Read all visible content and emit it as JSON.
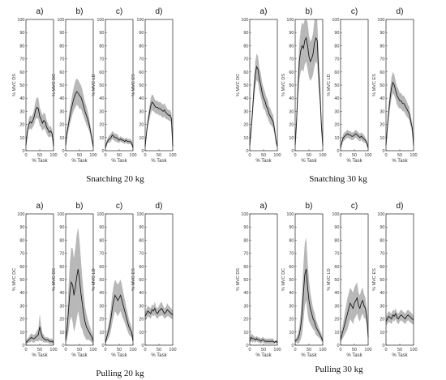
{
  "figure": {
    "groups": [
      {
        "caption": "Snatching 20 kg"
      },
      {
        "caption": "Snatching 30 kg"
      },
      {
        "caption": "Pulling 20 kg"
      },
      {
        "caption": "Pulling 30 kg"
      }
    ]
  },
  "chart_data": [
    {
      "group": "Snatching 20 kg",
      "panel_label": "a)",
      "type": "line",
      "ylabel": "% MVC DS",
      "xlabel": "% Task",
      "xlim": [
        0,
        100
      ],
      "ylim": [
        0,
        100
      ],
      "x": [
        0,
        5,
        10,
        15,
        20,
        25,
        30,
        35,
        40,
        45,
        50,
        55,
        60,
        65,
        70,
        75,
        80,
        85,
        90,
        95,
        100
      ],
      "mean": [
        4,
        14,
        20,
        22,
        21,
        23,
        26,
        31,
        33,
        32,
        26,
        24,
        21,
        23,
        22,
        18,
        16,
        14,
        15,
        13,
        3
      ],
      "band": [
        1,
        3,
        4,
        5,
        5,
        5,
        6,
        7,
        8,
        8,
        7,
        6,
        6,
        6,
        6,
        5,
        5,
        4,
        4,
        3,
        1
      ]
    },
    {
      "group": "Snatching 20 kg",
      "panel_label": "b)",
      "type": "line",
      "ylabel": "% MVC DC",
      "xlabel": "% Task",
      "xlim": [
        0,
        100
      ],
      "ylim": [
        0,
        100
      ],
      "x": [
        0,
        5,
        10,
        15,
        20,
        25,
        30,
        35,
        40,
        45,
        50,
        55,
        60,
        65,
        70,
        75,
        80,
        85,
        90,
        95,
        100
      ],
      "mean": [
        4,
        14,
        20,
        26,
        31,
        36,
        40,
        43,
        45,
        44,
        42,
        41,
        38,
        34,
        30,
        27,
        24,
        20,
        15,
        9,
        3
      ],
      "band": [
        1,
        3,
        5,
        6,
        7,
        8,
        9,
        10,
        10,
        10,
        10,
        9,
        9,
        8,
        7,
        7,
        6,
        5,
        4,
        3,
        1
      ]
    },
    {
      "group": "Snatching 20 kg",
      "panel_label": "c)",
      "type": "line",
      "ylabel": "% MVC LD",
      "xlabel": "% Task",
      "xlim": [
        0,
        100
      ],
      "ylim": [
        0,
        100
      ],
      "x": [
        0,
        5,
        10,
        15,
        20,
        25,
        30,
        35,
        40,
        45,
        50,
        55,
        60,
        65,
        70,
        75,
        80,
        85,
        90,
        95,
        100
      ],
      "mean": [
        2,
        6,
        8,
        9,
        10,
        12,
        11,
        10,
        10,
        9,
        8,
        9,
        8,
        8,
        7,
        8,
        7,
        7,
        7,
        6,
        2
      ],
      "band": [
        1,
        2,
        2,
        3,
        3,
        3,
        3,
        3,
        3,
        3,
        2,
        2,
        2,
        2,
        2,
        2,
        2,
        2,
        2,
        2,
        1
      ]
    },
    {
      "group": "Snatching 20 kg",
      "panel_label": "d)",
      "type": "line",
      "ylabel": "% MVC ES",
      "xlabel": "% Task",
      "xlim": [
        0,
        100
      ],
      "ylim": [
        0,
        100
      ],
      "x": [
        0,
        5,
        10,
        15,
        20,
        25,
        30,
        35,
        40,
        45,
        50,
        55,
        60,
        65,
        70,
        75,
        80,
        85,
        90,
        95,
        100
      ],
      "mean": [
        3,
        14,
        22,
        28,
        34,
        37,
        36,
        34,
        33,
        33,
        32,
        32,
        31,
        30,
        31,
        29,
        28,
        27,
        27,
        25,
        3
      ],
      "band": [
        1,
        3,
        4,
        5,
        6,
        6,
        6,
        5,
        5,
        5,
        5,
        5,
        5,
        5,
        5,
        5,
        4,
        4,
        4,
        4,
        1
      ]
    },
    {
      "group": "Snatching 30 kg",
      "panel_label": "a)",
      "type": "line",
      "ylabel": "% MVC DC",
      "xlabel": "% Task",
      "xlim": [
        0,
        100
      ],
      "ylim": [
        0,
        100
      ],
      "x": [
        0,
        5,
        10,
        15,
        20,
        25,
        30,
        35,
        40,
        45,
        50,
        55,
        60,
        65,
        70,
        75,
        80,
        85,
        90,
        95,
        100
      ],
      "mean": [
        4,
        16,
        30,
        46,
        58,
        64,
        62,
        54,
        50,
        44,
        40,
        38,
        34,
        32,
        28,
        26,
        24,
        22,
        16,
        8,
        3
      ],
      "band": [
        1,
        4,
        6,
        8,
        10,
        10,
        10,
        9,
        9,
        8,
        8,
        7,
        7,
        7,
        6,
        6,
        5,
        5,
        4,
        3,
        1
      ]
    },
    {
      "group": "Snatching 30 kg",
      "panel_label": "b)",
      "type": "line",
      "ylabel": "% MVC DS",
      "xlabel": "% Task",
      "xlim": [
        0,
        100
      ],
      "ylim": [
        0,
        100
      ],
      "x": [
        0,
        5,
        10,
        15,
        20,
        25,
        30,
        35,
        40,
        45,
        50,
        55,
        60,
        65,
        70,
        75,
        80,
        85,
        90,
        95,
        100
      ],
      "mean": [
        4,
        22,
        48,
        68,
        76,
        80,
        78,
        84,
        86,
        80,
        72,
        68,
        70,
        74,
        82,
        86,
        84,
        60,
        44,
        20,
        4
      ],
      "band": [
        2,
        6,
        10,
        14,
        16,
        18,
        18,
        18,
        18,
        18,
        16,
        15,
        15,
        16,
        18,
        18,
        18,
        14,
        10,
        6,
        2
      ]
    },
    {
      "group": "Snatching 30 kg",
      "panel_label": "c)",
      "type": "line",
      "ylabel": "% MVC LD",
      "xlabel": "% Task",
      "xlim": [
        0,
        100
      ],
      "ylim": [
        0,
        100
      ],
      "x": [
        0,
        5,
        10,
        15,
        20,
        25,
        30,
        35,
        40,
        45,
        50,
        55,
        60,
        65,
        70,
        75,
        80,
        85,
        90,
        95,
        100
      ],
      "mean": [
        2,
        7,
        10,
        11,
        12,
        13,
        12,
        12,
        11,
        11,
        12,
        13,
        12,
        11,
        10,
        11,
        10,
        9,
        8,
        6,
        2
      ],
      "band": [
        1,
        2,
        3,
        3,
        3,
        3,
        3,
        3,
        3,
        3,
        3,
        3,
        3,
        3,
        3,
        3,
        3,
        3,
        2,
        2,
        1
      ]
    },
    {
      "group": "Snatching 30 kg",
      "panel_label": "d)",
      "type": "line",
      "ylabel": "% MVC ES",
      "xlabel": "% Task",
      "xlim": [
        0,
        100
      ],
      "ylim": [
        0,
        100
      ],
      "x": [
        0,
        5,
        10,
        15,
        20,
        25,
        30,
        35,
        40,
        45,
        50,
        55,
        60,
        65,
        70,
        75,
        80,
        85,
        90,
        95,
        100
      ],
      "mean": [
        4,
        18,
        30,
        40,
        48,
        52,
        50,
        46,
        42,
        40,
        38,
        38,
        36,
        36,
        34,
        32,
        30,
        28,
        22,
        18,
        4
      ],
      "band": [
        1,
        4,
        6,
        7,
        8,
        8,
        8,
        7,
        7,
        7,
        6,
        6,
        6,
        6,
        6,
        6,
        5,
        5,
        4,
        4,
        1
      ]
    },
    {
      "group": "Pulling 20 kg",
      "panel_label": "a)",
      "type": "line",
      "ylabel": "% MVC DC",
      "xlabel": "% Task",
      "xlim": [
        0,
        100
      ],
      "ylim": [
        0,
        100
      ],
      "x": [
        0,
        5,
        10,
        15,
        20,
        25,
        30,
        35,
        40,
        45,
        50,
        55,
        60,
        65,
        70,
        75,
        80,
        85,
        90,
        95,
        100
      ],
      "mean": [
        2,
        3,
        4,
        5,
        6,
        5,
        5,
        6,
        7,
        8,
        14,
        9,
        6,
        5,
        4,
        4,
        4,
        3,
        3,
        3,
        2
      ],
      "band": [
        1,
        2,
        2,
        3,
        3,
        3,
        3,
        3,
        4,
        5,
        10,
        6,
        3,
        3,
        2,
        2,
        2,
        2,
        2,
        2,
        1
      ]
    },
    {
      "group": "Pulling 20 kg",
      "panel_label": "b)",
      "type": "line",
      "ylabel": "% MVC DS",
      "xlabel": "% Task",
      "xlim": [
        0,
        100
      ],
      "ylim": [
        0,
        100
      ],
      "x": [
        0,
        5,
        10,
        15,
        20,
        25,
        30,
        35,
        40,
        45,
        50,
        55,
        60,
        65,
        70,
        75,
        80,
        85,
        90,
        95,
        100
      ],
      "mean": [
        4,
        12,
        26,
        40,
        48,
        46,
        38,
        44,
        52,
        58,
        50,
        40,
        32,
        24,
        18,
        14,
        12,
        10,
        8,
        6,
        3
      ],
      "band": [
        2,
        8,
        16,
        22,
        26,
        28,
        28,
        30,
        32,
        32,
        30,
        26,
        20,
        16,
        12,
        10,
        8,
        6,
        5,
        4,
        2
      ]
    },
    {
      "group": "Pulling 20 kg",
      "panel_label": "c)",
      "type": "line",
      "ylabel": "% MVC LD",
      "xlabel": "% Task",
      "xlim": [
        0,
        100
      ],
      "ylim": [
        0,
        100
      ],
      "x": [
        0,
        5,
        10,
        15,
        20,
        25,
        30,
        35,
        40,
        45,
        50,
        55,
        60,
        65,
        70,
        75,
        80,
        85,
        90,
        95,
        100
      ],
      "mean": [
        2,
        6,
        10,
        14,
        20,
        28,
        34,
        38,
        36,
        34,
        36,
        38,
        34,
        30,
        26,
        22,
        18,
        14,
        12,
        10,
        3
      ],
      "band": [
        1,
        3,
        5,
        7,
        9,
        11,
        12,
        12,
        12,
        12,
        12,
        12,
        12,
        10,
        9,
        8,
        7,
        6,
        5,
        4,
        1
      ]
    },
    {
      "group": "Pulling 20 kg",
      "panel_label": "d)",
      "type": "line",
      "ylabel": "% MVC ES",
      "xlabel": "% Task",
      "xlim": [
        0,
        100
      ],
      "ylim": [
        0,
        100
      ],
      "x": [
        0,
        5,
        10,
        15,
        20,
        25,
        30,
        35,
        40,
        45,
        50,
        55,
        60,
        65,
        70,
        75,
        80,
        85,
        90,
        95,
        100
      ],
      "mean": [
        22,
        24,
        26,
        25,
        24,
        27,
        26,
        28,
        25,
        24,
        26,
        27,
        28,
        26,
        24,
        25,
        27,
        26,
        25,
        24,
        23
      ],
      "band": [
        3,
        4,
        4,
        4,
        4,
        4,
        4,
        5,
        4,
        4,
        4,
        5,
        5,
        4,
        4,
        4,
        5,
        4,
        4,
        4,
        3
      ]
    },
    {
      "group": "Pulling 30 kg",
      "panel_label": "a)",
      "type": "line",
      "ylabel": "% MVC DS",
      "xlabel": "% Task",
      "xlim": [
        0,
        100
      ],
      "ylim": [
        0,
        100
      ],
      "x": [
        0,
        5,
        10,
        15,
        20,
        25,
        30,
        35,
        40,
        45,
        50,
        55,
        60,
        65,
        70,
        75,
        80,
        85,
        90,
        95,
        100
      ],
      "mean": [
        3,
        6,
        5,
        5,
        4,
        5,
        4,
        4,
        3,
        4,
        4,
        3,
        3,
        3,
        3,
        3,
        3,
        3,
        2,
        3,
        2
      ],
      "band": [
        1,
        3,
        3,
        2,
        2,
        2,
        2,
        2,
        2,
        2,
        2,
        2,
        2,
        2,
        2,
        2,
        2,
        2,
        1,
        1,
        1
      ]
    },
    {
      "group": "Pulling 30 kg",
      "panel_label": "b)",
      "type": "line",
      "ylabel": "% MVC DC",
      "xlabel": "% Task",
      "xlim": [
        0,
        100
      ],
      "ylim": [
        0,
        100
      ],
      "x": [
        0,
        5,
        10,
        15,
        20,
        25,
        30,
        35,
        40,
        45,
        50,
        55,
        60,
        65,
        70,
        75,
        80,
        85,
        90,
        95,
        100
      ],
      "mean": [
        3,
        4,
        5,
        8,
        14,
        24,
        40,
        54,
        58,
        44,
        34,
        28,
        24,
        20,
        18,
        14,
        12,
        10,
        8,
        6,
        3
      ],
      "band": [
        1,
        2,
        4,
        6,
        10,
        16,
        22,
        24,
        24,
        20,
        16,
        12,
        10,
        8,
        7,
        6,
        5,
        4,
        3,
        3,
        1
      ]
    },
    {
      "group": "Pulling 30 kg",
      "panel_label": "c)",
      "type": "line",
      "ylabel": "% MVC LD",
      "xlabel": "% Task",
      "xlim": [
        0,
        100
      ],
      "ylim": [
        0,
        100
      ],
      "x": [
        0,
        5,
        10,
        15,
        20,
        25,
        30,
        35,
        40,
        45,
        50,
        55,
        60,
        65,
        70,
        75,
        80,
        85,
        90,
        95,
        100
      ],
      "mean": [
        4,
        8,
        12,
        16,
        20,
        24,
        28,
        32,
        30,
        28,
        32,
        34,
        36,
        30,
        28,
        32,
        34,
        30,
        28,
        22,
        6
      ],
      "band": [
        2,
        4,
        6,
        8,
        10,
        12,
        12,
        12,
        12,
        12,
        12,
        12,
        12,
        10,
        10,
        10,
        10,
        9,
        8,
        6,
        2
      ]
    },
    {
      "group": "Pulling 30 kg",
      "panel_label": "d)",
      "type": "line",
      "ylabel": "% MVC ES",
      "xlabel": "% Task",
      "xlim": [
        0,
        100
      ],
      "ylim": [
        0,
        100
      ],
      "x": [
        0,
        5,
        10,
        15,
        20,
        25,
        30,
        35,
        40,
        45,
        50,
        55,
        60,
        65,
        70,
        75,
        80,
        85,
        90,
        95,
        100
      ],
      "mean": [
        18,
        20,
        22,
        21,
        20,
        23,
        22,
        24,
        21,
        20,
        22,
        23,
        22,
        21,
        20,
        22,
        23,
        22,
        21,
        20,
        19
      ],
      "band": [
        3,
        4,
        4,
        4,
        4,
        4,
        4,
        4,
        4,
        4,
        4,
        4,
        4,
        4,
        4,
        4,
        4,
        4,
        4,
        4,
        3
      ]
    }
  ]
}
